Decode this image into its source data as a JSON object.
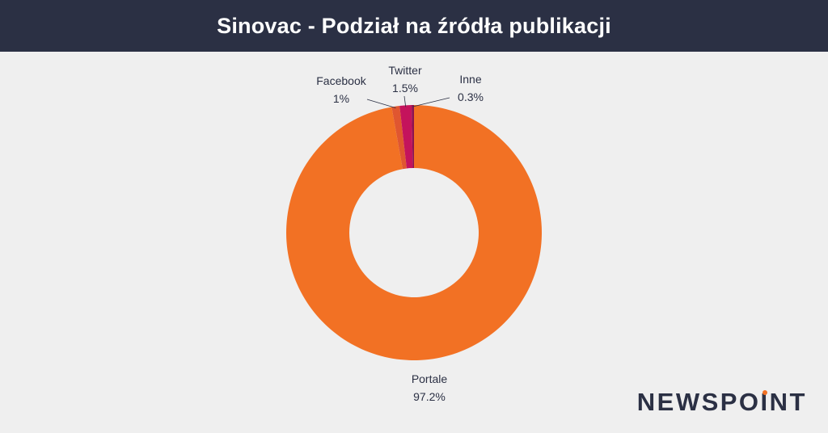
{
  "header": {
    "title": "Sinovac - Podział na źródła publikacji"
  },
  "chart_data": {
    "type": "pie",
    "variant": "donut",
    "title": "Sinovac - Podział na źródła publikacji",
    "slices": [
      {
        "label": "Portale",
        "value": 97.2,
        "value_label": "97.2%",
        "color": "#f27124"
      },
      {
        "label": "Facebook",
        "value": 1.0,
        "value_label": "1%",
        "color": "#e05630"
      },
      {
        "label": "Twitter",
        "value": 1.5,
        "value_label": "1.5%",
        "color": "#c4135c"
      },
      {
        "label": "Inne",
        "value": 0.3,
        "value_label": "0.3%",
        "color": "#8d1250"
      }
    ]
  },
  "logo": {
    "text_before": "NEWSPO",
    "text_i": "I",
    "text_after": "NT",
    "accent_color": "#f27124"
  }
}
